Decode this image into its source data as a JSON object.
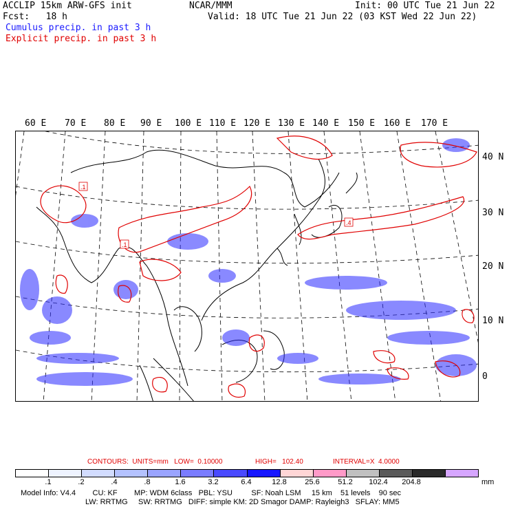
{
  "header": {
    "model": "ACCLIP 15km ARW-GFS init",
    "fcst": "Fcst:   18 h",
    "center": "NCAR/MMM",
    "init": "Init: 00 UTC Tue 21 Jun 22",
    "valid": "Valid: 18 UTC Tue 21 Jun 22 (03 KST Wed 22 Jun 22)",
    "cumulus": "Cumulus precip. in past 3 h",
    "explicit": "Explicit precip. in past 3 h"
  },
  "map": {
    "lon_labels": [
      "60 E",
      "70 E",
      "80 E",
      "90 E",
      "100 E",
      "110 E",
      "120 E",
      "130 E",
      "140 E",
      "150 E",
      "160 E",
      "170 E"
    ],
    "lat_labels": [
      "40 N",
      "30 N",
      "20 N",
      "10 N",
      "0"
    ],
    "contour_labels": [
      ".1",
      ".1",
      ".4"
    ],
    "cumulus_color": "#2a2aff",
    "explicit_color": "#e00000"
  },
  "legend": {
    "contours": "CONTOURS:  UNITS=mm   LOW=  0.10000",
    "high": "HIGH=   102.40",
    "interval": "INTERVAL=X  4.0000",
    "colors": [
      "#ffffff",
      "#eef3ff",
      "#d2dcff",
      "#b4c2ff",
      "#9aa4ff",
      "#7a7cff",
      "#4a4aff",
      "#1616ff",
      "#ffd6d6",
      "#ff9ac8",
      "#c0c0c0",
      "#5a5a5a",
      "#2a2a2a",
      "#d6a6ff"
    ],
    "ticks": [
      ".1",
      ".2",
      ".4",
      ".8",
      "1.6",
      "3.2",
      "6.4",
      "12.8",
      "25.6",
      "51.2",
      "102.4",
      "204.8"
    ],
    "unit": "mm"
  },
  "model_info": {
    "line1": "Model Info: V4.4        CU: KF        MP: WDM 6class   PBL: YSU         SF: Noah LSM     15 km    51 levels    90 sec",
    "line2": "LW: RRTMG     SW: RRTMG   DIFF: simple KM: 2D Smagor DAMP: Rayleigh3   SFLAY: MM5"
  }
}
